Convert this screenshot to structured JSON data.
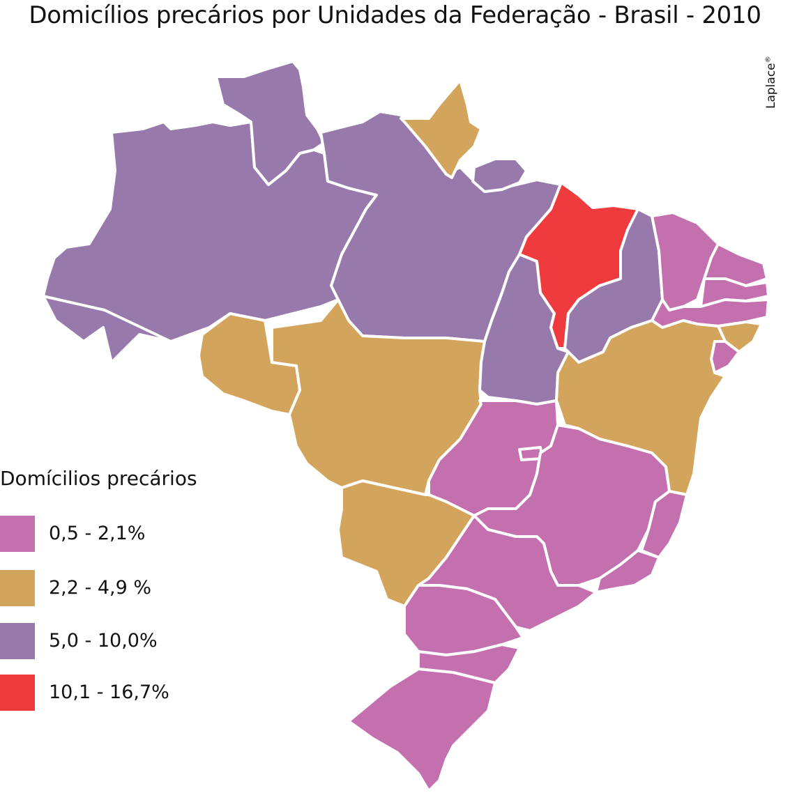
{
  "title": "Domicílios precários por Unidades da Federação - Brasil - 2010",
  "credit": "Laplace",
  "credit_mark": "®",
  "legend": {
    "title": "Domícilios precários",
    "items": [
      {
        "label": "0,5 - 2,1%",
        "color": "#c46fae"
      },
      {
        "label": "2,2 - 4,9 %",
        "color": "#d3a55c"
      },
      {
        "label": "5,0 - 10,0%",
        "color": "#977aab"
      },
      {
        "label": "10,1 - 16,7%",
        "color": "#ef3b3e"
      }
    ]
  },
  "colors": {
    "class_1": "#c46fae",
    "class_2": "#d3a55c",
    "class_3": "#977aab",
    "class_4": "#ef3b3e",
    "border": "#ffffff"
  }
}
